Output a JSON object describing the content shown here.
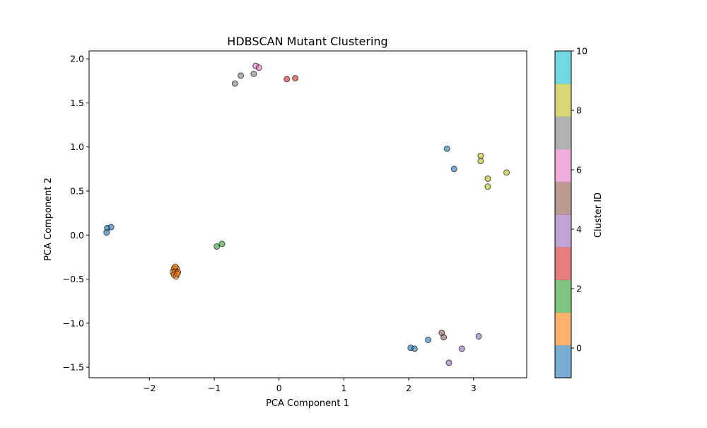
{
  "chart_data": {
    "type": "scatter",
    "title": "HDBSCAN Mutant Clustering",
    "xlabel": "PCA Component 1",
    "ylabel": "PCA Component 2",
    "xlim": [
      -2.93,
      3.82
    ],
    "ylim": [
      -1.62,
      2.09
    ],
    "x_ticks": [
      -2,
      -1,
      0,
      1,
      2,
      3
    ],
    "x_tick_labels": [
      "−2",
      "−1",
      "0",
      "1",
      "2",
      "3"
    ],
    "y_ticks": [
      -1.5,
      -1.0,
      -0.5,
      0.0,
      0.5,
      1.0,
      1.5,
      2.0
    ],
    "y_tick_labels": [
      "−1.5",
      "−1.0",
      "−0.5",
      "0.0",
      "0.5",
      "1.0",
      "1.5",
      "2.0"
    ],
    "grid": false,
    "colorbar": {
      "label": "Cluster ID",
      "range": [
        -1,
        10
      ],
      "ticks": [
        0,
        2,
        4,
        6,
        8,
        10
      ],
      "tick_labels": [
        "0",
        "2",
        "4",
        "6",
        "8",
        "10"
      ],
      "colors": [
        "#1f77b4",
        "#ff7f0e",
        "#2ca02c",
        "#d62728",
        "#9467bd",
        "#8c564b",
        "#e377c2",
        "#7f7f7f",
        "#bcbd22",
        "#17becf"
      ]
    },
    "series": [
      {
        "cluster": -1,
        "points": [
          [
            -2.65,
            0.08
          ],
          [
            -2.59,
            0.09
          ],
          [
            -2.66,
            0.03
          ],
          [
            2.59,
            0.98
          ],
          [
            2.7,
            0.75
          ]
        ]
      },
      {
        "cluster": 0,
        "points": [
          [
            2.03,
            -1.28
          ],
          [
            2.09,
            -1.29
          ],
          [
            2.3,
            -1.19
          ]
        ]
      },
      {
        "cluster": 1,
        "points": [
          [
            -1.62,
            -0.38
          ],
          [
            -1.58,
            -0.38
          ],
          [
            -1.64,
            -0.42
          ],
          [
            -1.6,
            -0.41
          ],
          [
            -1.56,
            -0.42
          ],
          [
            -1.62,
            -0.45
          ],
          [
            -1.59,
            -0.47
          ],
          [
            -1.57,
            -0.44
          ],
          [
            -1.6,
            -0.36
          ]
        ]
      },
      {
        "cluster": 2,
        "points": [
          [
            -0.96,
            -0.13
          ],
          [
            -0.88,
            -0.1
          ]
        ]
      },
      {
        "cluster": 3,
        "points": [
          [
            0.12,
            1.77
          ],
          [
            0.25,
            1.78
          ]
        ]
      },
      {
        "cluster": 4,
        "points": [
          [
            2.82,
            -1.29
          ],
          [
            3.08,
            -1.15
          ],
          [
            2.62,
            -1.45
          ]
        ]
      },
      {
        "cluster": 5,
        "points": [
          [
            2.51,
            -1.11
          ],
          [
            2.54,
            -1.16
          ]
        ]
      },
      {
        "cluster": 6,
        "points": [
          [
            -0.36,
            1.92
          ],
          [
            -0.31,
            1.9
          ]
        ]
      },
      {
        "cluster": 7,
        "points": [
          [
            -0.68,
            1.72
          ],
          [
            -0.59,
            1.81
          ],
          [
            -0.39,
            1.83
          ]
        ]
      },
      {
        "cluster": 8,
        "points": [
          [
            3.11,
            0.9
          ],
          [
            3.11,
            0.84
          ],
          [
            3.22,
            0.64
          ],
          [
            3.22,
            0.55
          ],
          [
            3.51,
            0.71
          ]
        ]
      }
    ]
  }
}
